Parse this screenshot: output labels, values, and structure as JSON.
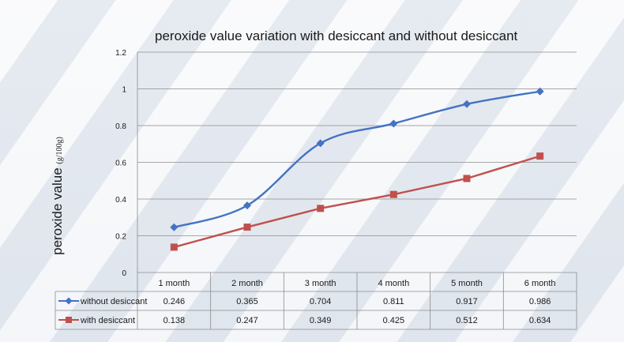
{
  "chart_data": {
    "type": "line",
    "title": "peroxide value variation with desiccant and without desiccant",
    "ylabel": "peroxide value",
    "ylabel_unit": "(g/100g)",
    "xlabel": "",
    "categories": [
      "1 month",
      "2 month",
      "3 month",
      "4 month",
      "5 month",
      "6 month"
    ],
    "ylim": [
      0,
      1.2
    ],
    "yticks": [
      "0",
      "0.2",
      "0.4",
      "0.6",
      "0.8",
      "1",
      "1.2"
    ],
    "grid": true,
    "legend": "table-left",
    "series": [
      {
        "name": "without desiccant",
        "color": "#4472c4",
        "marker": "diamond",
        "values": [
          0.246,
          0.365,
          0.704,
          0.811,
          0.917,
          0.986
        ],
        "labels": [
          "0.246",
          "0.365",
          "0.704",
          "0.811",
          "0.917",
          "0.986"
        ]
      },
      {
        "name": "with desiccant",
        "color": "#c0504d",
        "marker": "square",
        "values": [
          0.138,
          0.247,
          0.349,
          0.425,
          0.512,
          0.634
        ],
        "labels": [
          "0.138",
          "0.247",
          "0.349",
          "0.425",
          "0.512",
          "0.634"
        ]
      }
    ]
  }
}
